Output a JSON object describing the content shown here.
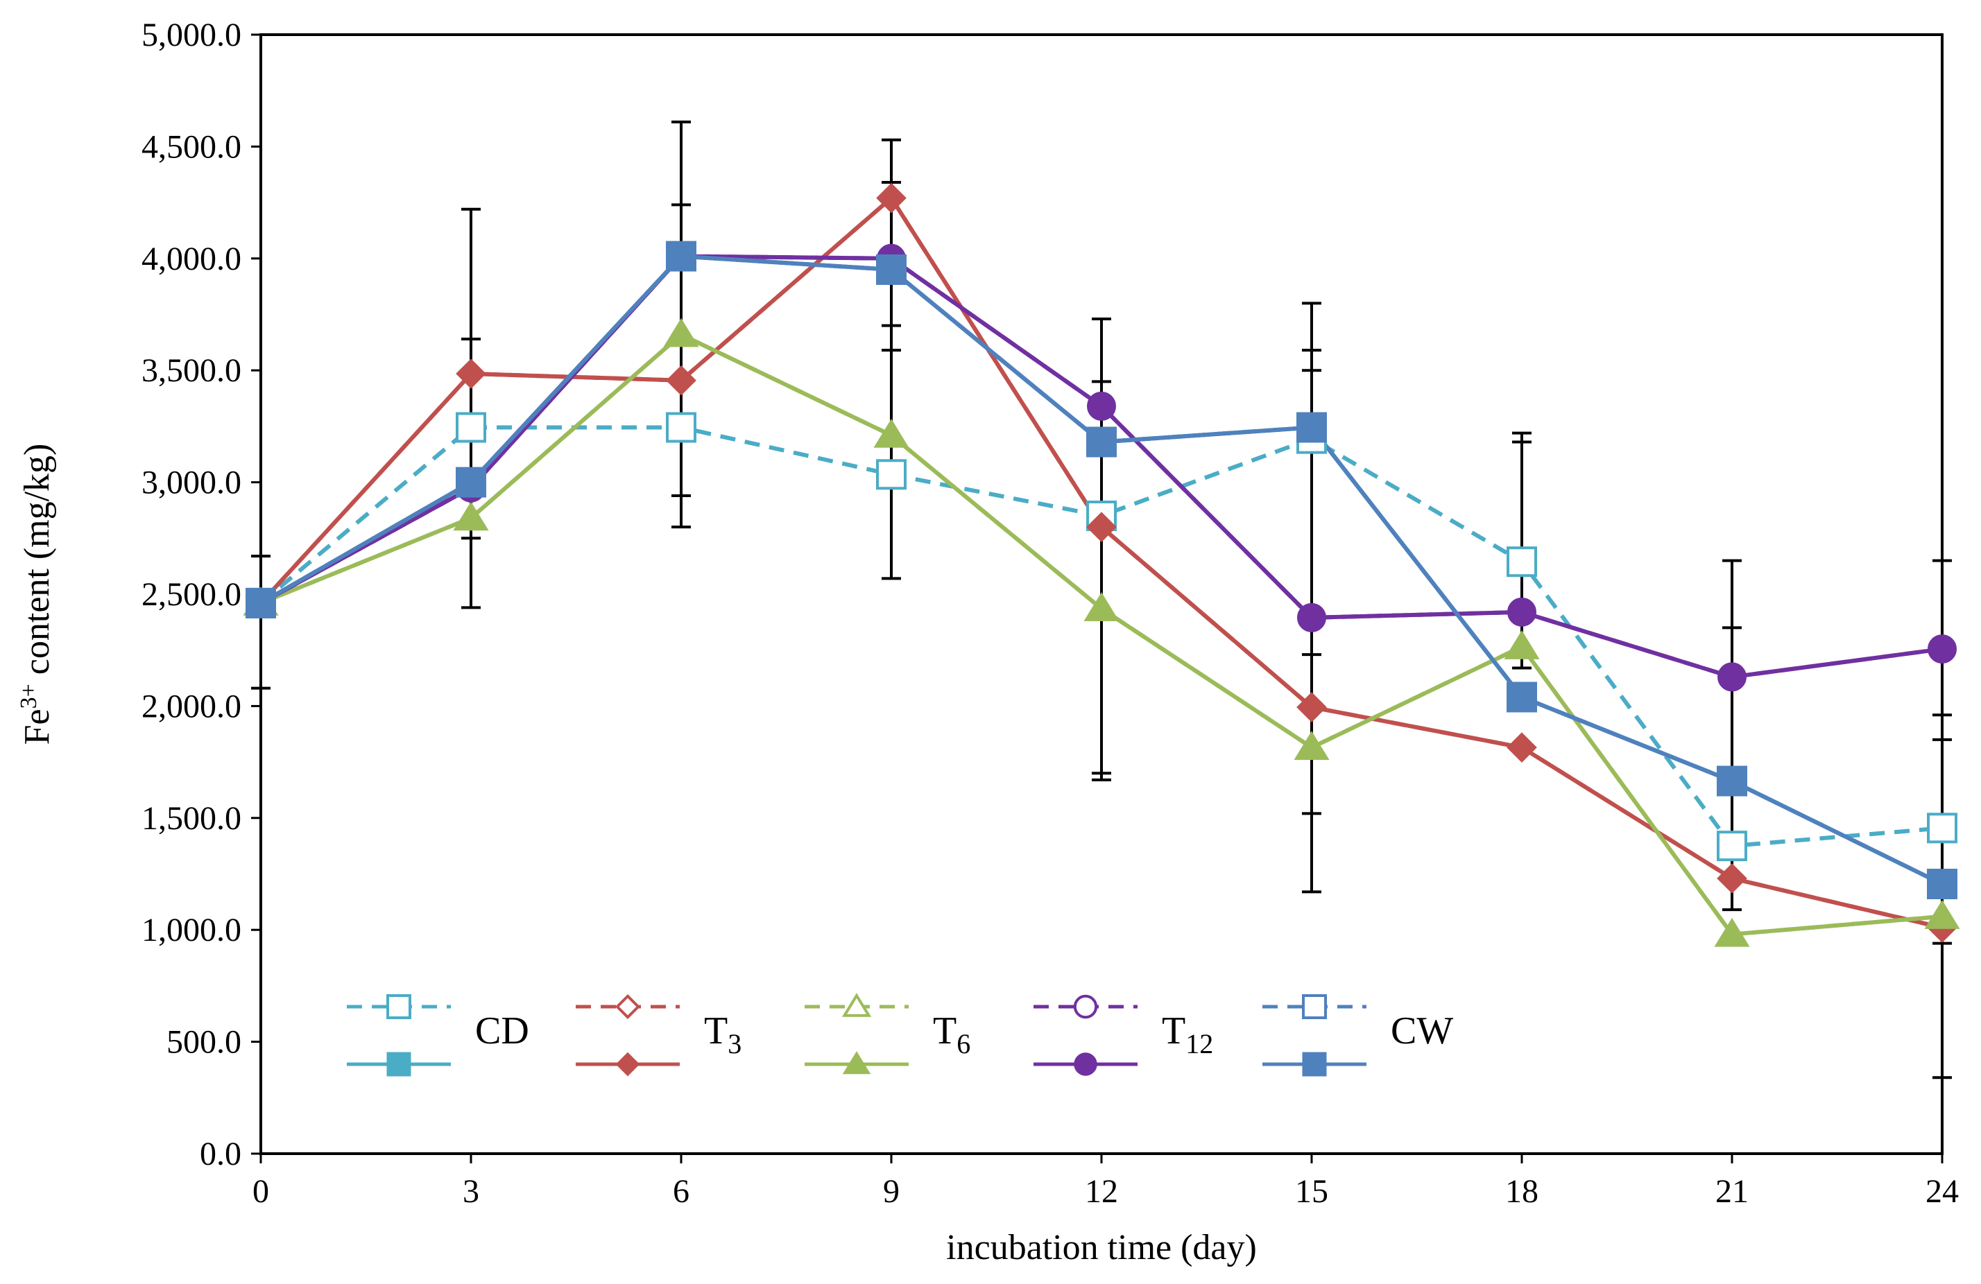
{
  "chart_data": {
    "type": "line",
    "xlabel": "incubation time (day)",
    "ylabel": {
      "base": "Fe",
      "sup": "3+",
      "rest": " content  (mg/kg)"
    },
    "xlim": [
      0,
      24
    ],
    "ylim": [
      0,
      5000
    ],
    "x_ticks": [
      0,
      3,
      6,
      9,
      12,
      15,
      18,
      21,
      24
    ],
    "x_tick_labels": [
      "0",
      "3",
      "6",
      "9",
      "12",
      "15",
      "18",
      "21",
      "24"
    ],
    "y_ticks": [
      0,
      500,
      1000,
      1500,
      2000,
      2500,
      3000,
      3500,
      4000,
      4500,
      5000
    ],
    "y_tick_labels": [
      "0.0",
      "500.0",
      "1,000.0",
      "1,500.0",
      "2,000.0",
      "2,500.0",
      "3,000.0",
      "3,500.0",
      "4,000.0",
      "4,500.0",
      "5,000.0"
    ],
    "x": [
      0,
      3,
      6,
      9,
      12,
      15,
      18,
      21,
      24
    ],
    "series": [
      {
        "name": "CD",
        "label_main": "CD",
        "label_sub": "",
        "color": "#4bacc6",
        "marker": "square",
        "filled": false,
        "dashed": true,
        "values": [
          2460,
          3245,
          3245,
          3035,
          2850,
          3195,
          2645,
          1375,
          1455
        ]
      },
      {
        "name": "CD",
        "label_main": "CD",
        "label_sub": "",
        "color": "#4bacc6",
        "marker": "square",
        "filled": true,
        "dashed": false,
        "values": [
          2460,
          3000,
          4010,
          3950,
          3180,
          3245,
          2040,
          1665,
          1205
        ]
      },
      {
        "name": "T3",
        "label_main": "T",
        "label_sub": "3",
        "color": "#c0504d",
        "marker": "diamond",
        "filled": false,
        "dashed": true,
        "values": [
          2460,
          3485,
          3455,
          4270,
          2800,
          1995,
          1815,
          1230,
          1010
        ]
      },
      {
        "name": "T3",
        "label_main": "T",
        "label_sub": "3",
        "color": "#c0504d",
        "marker": "diamond",
        "filled": true,
        "dashed": false,
        "values": [
          2460,
          3485,
          3455,
          4270,
          2800,
          1995,
          1815,
          1230,
          1010
        ]
      },
      {
        "name": "T6",
        "label_main": "T",
        "label_sub": "6",
        "color": "#9bbb59",
        "marker": "triangle",
        "filled": false,
        "dashed": true,
        "values": [
          2460,
          2840,
          3660,
          3210,
          2435,
          1815,
          2265,
          980,
          1060
        ]
      },
      {
        "name": "T6",
        "label_main": "T",
        "label_sub": "6",
        "color": "#9bbb59",
        "marker": "triangle",
        "filled": true,
        "dashed": false,
        "values": [
          2460,
          2840,
          3660,
          3210,
          2435,
          1815,
          2265,
          980,
          1060
        ]
      },
      {
        "name": "T12",
        "label_main": "T",
        "label_sub": "12",
        "color": "#7030a0",
        "marker": "circle",
        "filled": false,
        "dashed": true,
        "values": [
          2460,
          2975,
          4010,
          4000,
          3340,
          2395,
          2420,
          2130,
          2255
        ]
      },
      {
        "name": "T12",
        "label_main": "T",
        "label_sub": "12",
        "color": "#7030a0",
        "marker": "circle",
        "filled": true,
        "dashed": false,
        "values": [
          2460,
          2975,
          4010,
          4000,
          3340,
          2395,
          2420,
          2130,
          2255
        ]
      },
      {
        "name": "CW",
        "label_main": "CW",
        "label_sub": "",
        "color": "#4f81bd",
        "marker": "square",
        "filled": false,
        "dashed": true,
        "values": [
          2460,
          3000,
          4010,
          3950,
          3180,
          3245,
          2040,
          1665,
          1205
        ]
      },
      {
        "name": "CW",
        "label_main": "CW",
        "label_sub": "",
        "color": "#4f81bd",
        "marker": "square",
        "filled": true,
        "dashed": false,
        "values": [
          2460,
          3000,
          4010,
          3950,
          3180,
          3245,
          2040,
          1665,
          1205
        ]
      }
    ],
    "error_bars": [
      {
        "x": 0,
        "low": 2080,
        "high": 2670
      },
      {
        "x": 3,
        "low": 2440,
        "high": 4220
      },
      {
        "x": 3,
        "low": 2750,
        "high": 3640
      },
      {
        "x": 6,
        "low": 2800,
        "high": 4610
      },
      {
        "x": 6,
        "low": 2940,
        "high": 4240
      },
      {
        "x": 9,
        "low": 2570,
        "high": 4530
      },
      {
        "x": 9,
        "low": 3590,
        "high": 4340
      },
      {
        "x": 9,
        "low": 3700,
        "high": 4000
      },
      {
        "x": 12,
        "low": 1670,
        "high": 3730
      },
      {
        "x": 12,
        "low": 1700,
        "high": 3450
      },
      {
        "x": 15,
        "low": 1170,
        "high": 3800
      },
      {
        "x": 15,
        "low": 1520,
        "high": 3590
      },
      {
        "x": 15,
        "low": 2230,
        "high": 3500
      },
      {
        "x": 18,
        "low": 2170,
        "high": 3220
      },
      {
        "x": 18,
        "low": 2400,
        "high": 3180
      },
      {
        "x": 21,
        "low": 1090,
        "high": 2650
      },
      {
        "x": 21,
        "low": 1690,
        "high": 2350
      },
      {
        "x": 24,
        "low": 340,
        "high": 2650
      },
      {
        "x": 24,
        "low": 940,
        "high": 1960
      },
      {
        "x": 24,
        "low": 1850,
        "high": 2250
      }
    ],
    "legend_placement": "bottom-left inside plot"
  }
}
